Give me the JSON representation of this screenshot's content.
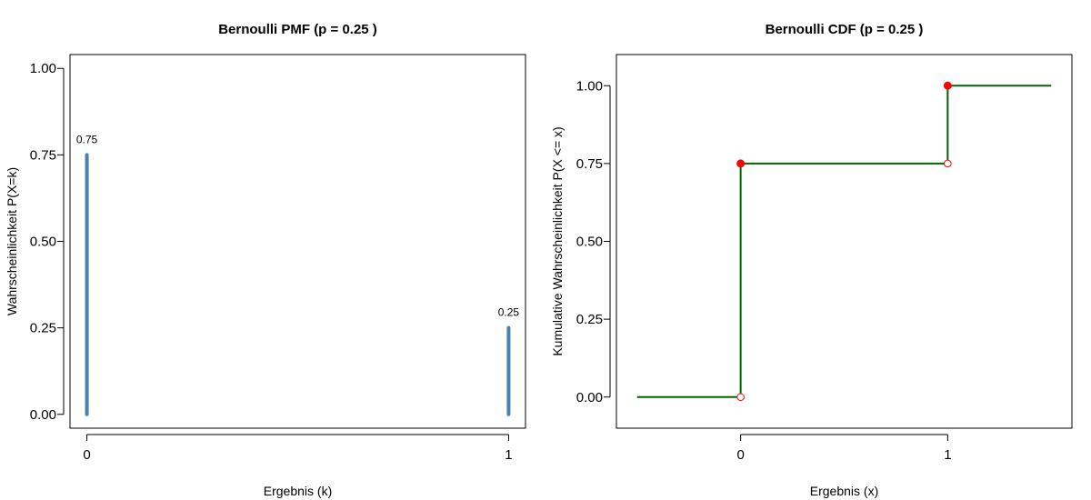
{
  "chart_data": [
    {
      "type": "bar",
      "title": "Bernoulli PMF (p = 0.25 )",
      "xlabel": "Ergebnis (k)",
      "ylabel": "Wahrscheinlichkeit P(X=k)",
      "categories": [
        "0",
        "1"
      ],
      "x": [
        0,
        1
      ],
      "values": [
        0.75,
        0.25
      ],
      "data_labels": [
        "0.75",
        "0.25"
      ],
      "xlim": [
        -0.04,
        1.04
      ],
      "ylim": [
        -0.04,
        1.04
      ],
      "yticks": [
        0,
        0.25,
        0.5,
        0.75,
        1.0
      ],
      "ytick_labels": [
        "0.00",
        "0.25",
        "0.50",
        "0.75",
        "1.00"
      ],
      "xticks": [
        0,
        1
      ],
      "xtick_labels": [
        "0",
        "1"
      ],
      "grid": false,
      "color": "#4682B4"
    },
    {
      "type": "line",
      "title": "Bernoulli CDF (p = 0.25 )",
      "xlabel": "Ergebnis (x)",
      "ylabel": "Kumulative Wahrscheinlichkeit P(X <= x)",
      "step_segments": [
        {
          "x": [
            -0.5,
            0
          ],
          "y": [
            0,
            0
          ]
        },
        {
          "x": [
            0,
            1
          ],
          "y": [
            0.75,
            0.75
          ]
        },
        {
          "x": [
            1,
            1.5
          ],
          "y": [
            1,
            1
          ]
        }
      ],
      "jumps": [
        {
          "x": 0,
          "from": 0,
          "to": 0.75
        },
        {
          "x": 1,
          "from": 0.75,
          "to": 1
        }
      ],
      "filled_points": [
        {
          "x": 0,
          "y": 0.75
        },
        {
          "x": 1,
          "y": 1
        }
      ],
      "open_points": [
        {
          "x": 0,
          "y": 0
        },
        {
          "x": 1,
          "y": 0.75
        }
      ],
      "xlim": [
        -0.6,
        1.6
      ],
      "ylim": [
        -0.1,
        1.1
      ],
      "yticks": [
        0,
        0.25,
        0.5,
        0.75,
        1.0
      ],
      "ytick_labels": [
        "0.00",
        "0.25",
        "0.50",
        "0.75",
        "1.00"
      ],
      "xticks": [
        0,
        1
      ],
      "xtick_labels": [
        "0",
        "1"
      ],
      "grid": false,
      "line_color": "#006400",
      "point_color": "#FF0000"
    }
  ]
}
